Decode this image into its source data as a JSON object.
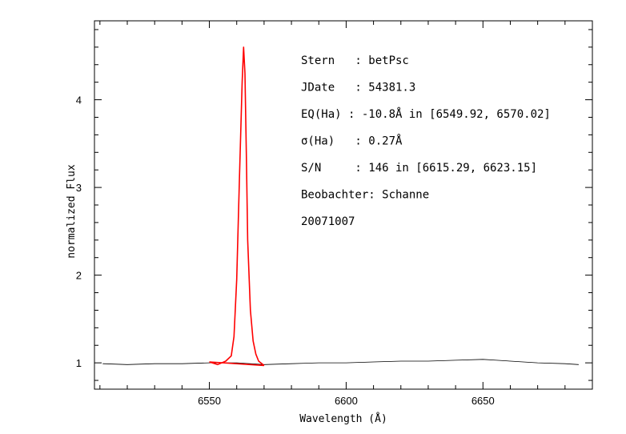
{
  "chart_data": {
    "type": "line",
    "title": "",
    "xlabel": "Wavelength (Å)",
    "ylabel": "normalized Flux",
    "xlim": [
      6508,
      6690
    ],
    "ylim": [
      0.7,
      4.9
    ],
    "xticks": [
      6550,
      6600,
      6650
    ],
    "xticklabels": [
      "6550",
      "6600",
      "6650"
    ],
    "yticks": [
      1,
      2,
      3,
      4
    ],
    "yticklabels": [
      "1",
      "2",
      "3",
      "4"
    ],
    "grid": false,
    "annotations": [
      "Stern   : betPsc",
      "JDate   : 54381.3",
      "EQ(Ha) : -10.8Å in [6549.92, 6570.02]",
      "σ(Ha)   : 0.27Å",
      "S/N     : 146 in [6615.29, 6623.15]",
      "Beobachter: Schanne",
      "20071007"
    ],
    "series": [
      {
        "color": "#000000",
        "x": [
          6511,
          6520,
          6530,
          6540,
          6550,
          6560,
          6570,
          6580,
          6590,
          6600,
          6610,
          6620,
          6630,
          6640,
          6650,
          6655,
          6660,
          6670,
          6680,
          6685
        ],
        "y": [
          0.99,
          0.98,
          0.99,
          0.99,
          1.0,
          1.0,
          0.98,
          0.99,
          1.0,
          1.0,
          1.01,
          1.02,
          1.02,
          1.03,
          1.04,
          1.03,
          1.02,
          1.0,
          0.99,
          0.98
        ]
      },
      {
        "color": "#ff0000",
        "x": [
          6550,
          6553,
          6556,
          6558,
          6559,
          6560,
          6561,
          6562,
          6562.5,
          6563,
          6563.5,
          6564,
          6565,
          6566,
          6567,
          6568,
          6570
        ],
        "y": [
          1.01,
          0.98,
          1.02,
          1.08,
          1.3,
          1.95,
          3.1,
          4.2,
          4.6,
          4.3,
          3.4,
          2.4,
          1.6,
          1.25,
          1.1,
          1.02,
          0.97
        ]
      },
      {
        "color": "#ff0000",
        "x": [
          6550,
          6570
        ],
        "y": [
          1.01,
          0.97
        ]
      }
    ]
  }
}
